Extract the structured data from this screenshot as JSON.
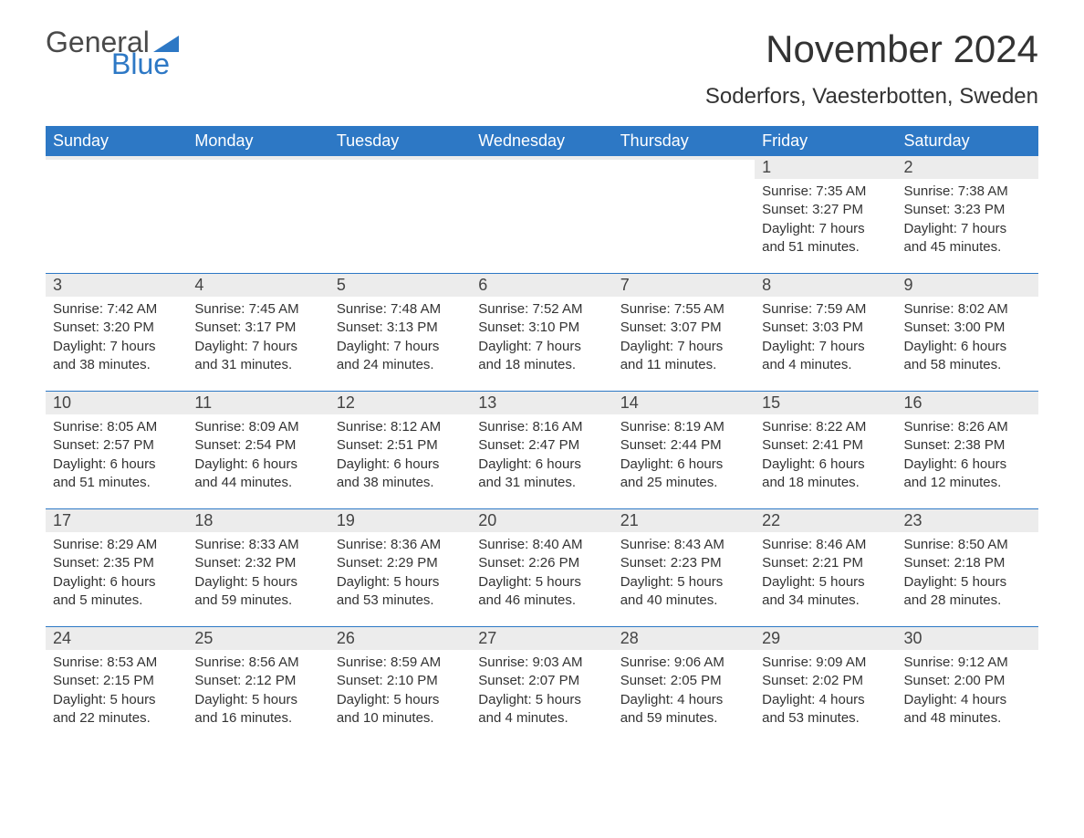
{
  "logo": {
    "text1": "General",
    "text2": "Blue",
    "tri_color": "#2d78c5"
  },
  "title": "November 2024",
  "subtitle": "Soderfors, Vaesterbotten, Sweden",
  "colors": {
    "header_bg": "#2d78c5",
    "header_fg": "#ffffff",
    "daynum_bg": "#ececec",
    "text": "#333333",
    "border": "#2d78c5",
    "background": "#ffffff"
  },
  "day_headers": [
    "Sunday",
    "Monday",
    "Tuesday",
    "Wednesday",
    "Thursday",
    "Friday",
    "Saturday"
  ],
  "weeks": [
    [
      {
        "n": "",
        "lines": []
      },
      {
        "n": "",
        "lines": []
      },
      {
        "n": "",
        "lines": []
      },
      {
        "n": "",
        "lines": []
      },
      {
        "n": "",
        "lines": []
      },
      {
        "n": "1",
        "lines": [
          "Sunrise: 7:35 AM",
          "Sunset: 3:27 PM",
          "Daylight: 7 hours and 51 minutes."
        ]
      },
      {
        "n": "2",
        "lines": [
          "Sunrise: 7:38 AM",
          "Sunset: 3:23 PM",
          "Daylight: 7 hours and 45 minutes."
        ]
      }
    ],
    [
      {
        "n": "3",
        "lines": [
          "Sunrise: 7:42 AM",
          "Sunset: 3:20 PM",
          "Daylight: 7 hours and 38 minutes."
        ]
      },
      {
        "n": "4",
        "lines": [
          "Sunrise: 7:45 AM",
          "Sunset: 3:17 PM",
          "Daylight: 7 hours and 31 minutes."
        ]
      },
      {
        "n": "5",
        "lines": [
          "Sunrise: 7:48 AM",
          "Sunset: 3:13 PM",
          "Daylight: 7 hours and 24 minutes."
        ]
      },
      {
        "n": "6",
        "lines": [
          "Sunrise: 7:52 AM",
          "Sunset: 3:10 PM",
          "Daylight: 7 hours and 18 minutes."
        ]
      },
      {
        "n": "7",
        "lines": [
          "Sunrise: 7:55 AM",
          "Sunset: 3:07 PM",
          "Daylight: 7 hours and 11 minutes."
        ]
      },
      {
        "n": "8",
        "lines": [
          "Sunrise: 7:59 AM",
          "Sunset: 3:03 PM",
          "Daylight: 7 hours and 4 minutes."
        ]
      },
      {
        "n": "9",
        "lines": [
          "Sunrise: 8:02 AM",
          "Sunset: 3:00 PM",
          "Daylight: 6 hours and 58 minutes."
        ]
      }
    ],
    [
      {
        "n": "10",
        "lines": [
          "Sunrise: 8:05 AM",
          "Sunset: 2:57 PM",
          "Daylight: 6 hours and 51 minutes."
        ]
      },
      {
        "n": "11",
        "lines": [
          "Sunrise: 8:09 AM",
          "Sunset: 2:54 PM",
          "Daylight: 6 hours and 44 minutes."
        ]
      },
      {
        "n": "12",
        "lines": [
          "Sunrise: 8:12 AM",
          "Sunset: 2:51 PM",
          "Daylight: 6 hours and 38 minutes."
        ]
      },
      {
        "n": "13",
        "lines": [
          "Sunrise: 8:16 AM",
          "Sunset: 2:47 PM",
          "Daylight: 6 hours and 31 minutes."
        ]
      },
      {
        "n": "14",
        "lines": [
          "Sunrise: 8:19 AM",
          "Sunset: 2:44 PM",
          "Daylight: 6 hours and 25 minutes."
        ]
      },
      {
        "n": "15",
        "lines": [
          "Sunrise: 8:22 AM",
          "Sunset: 2:41 PM",
          "Daylight: 6 hours and 18 minutes."
        ]
      },
      {
        "n": "16",
        "lines": [
          "Sunrise: 8:26 AM",
          "Sunset: 2:38 PM",
          "Daylight: 6 hours and 12 minutes."
        ]
      }
    ],
    [
      {
        "n": "17",
        "lines": [
          "Sunrise: 8:29 AM",
          "Sunset: 2:35 PM",
          "Daylight: 6 hours and 5 minutes."
        ]
      },
      {
        "n": "18",
        "lines": [
          "Sunrise: 8:33 AM",
          "Sunset: 2:32 PM",
          "Daylight: 5 hours and 59 minutes."
        ]
      },
      {
        "n": "19",
        "lines": [
          "Sunrise: 8:36 AM",
          "Sunset: 2:29 PM",
          "Daylight: 5 hours and 53 minutes."
        ]
      },
      {
        "n": "20",
        "lines": [
          "Sunrise: 8:40 AM",
          "Sunset: 2:26 PM",
          "Daylight: 5 hours and 46 minutes."
        ]
      },
      {
        "n": "21",
        "lines": [
          "Sunrise: 8:43 AM",
          "Sunset: 2:23 PM",
          "Daylight: 5 hours and 40 minutes."
        ]
      },
      {
        "n": "22",
        "lines": [
          "Sunrise: 8:46 AM",
          "Sunset: 2:21 PM",
          "Daylight: 5 hours and 34 minutes."
        ]
      },
      {
        "n": "23",
        "lines": [
          "Sunrise: 8:50 AM",
          "Sunset: 2:18 PM",
          "Daylight: 5 hours and 28 minutes."
        ]
      }
    ],
    [
      {
        "n": "24",
        "lines": [
          "Sunrise: 8:53 AM",
          "Sunset: 2:15 PM",
          "Daylight: 5 hours and 22 minutes."
        ]
      },
      {
        "n": "25",
        "lines": [
          "Sunrise: 8:56 AM",
          "Sunset: 2:12 PM",
          "Daylight: 5 hours and 16 minutes."
        ]
      },
      {
        "n": "26",
        "lines": [
          "Sunrise: 8:59 AM",
          "Sunset: 2:10 PM",
          "Daylight: 5 hours and 10 minutes."
        ]
      },
      {
        "n": "27",
        "lines": [
          "Sunrise: 9:03 AM",
          "Sunset: 2:07 PM",
          "Daylight: 5 hours and 4 minutes."
        ]
      },
      {
        "n": "28",
        "lines": [
          "Sunrise: 9:06 AM",
          "Sunset: 2:05 PM",
          "Daylight: 4 hours and 59 minutes."
        ]
      },
      {
        "n": "29",
        "lines": [
          "Sunrise: 9:09 AM",
          "Sunset: 2:02 PM",
          "Daylight: 4 hours and 53 minutes."
        ]
      },
      {
        "n": "30",
        "lines": [
          "Sunrise: 9:12 AM",
          "Sunset: 2:00 PM",
          "Daylight: 4 hours and 48 minutes."
        ]
      }
    ]
  ]
}
